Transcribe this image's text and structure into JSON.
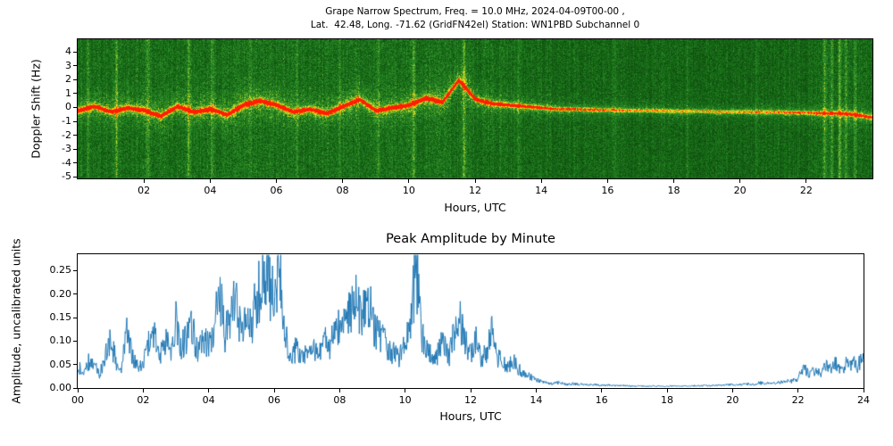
{
  "page": {
    "background": "#ffffff"
  },
  "chart_data": [
    {
      "type": "heatmap",
      "title_line1": "Grape Narrow Spectrum, Freq. = 10.0 MHz, 2024-04-09T00-00 ,",
      "title_line2": "Lat.  42.48, Long. -71.62 (GridFN42el) Station: WN1PBD Subchannel 0",
      "xlabel": "Hours, UTC",
      "ylabel": "Doppler Shift (Hz)",
      "xlim": [
        0,
        24
      ],
      "ylim_hz": [
        -5.1,
        4.9
      ],
      "xtick_values": [
        2,
        4,
        6,
        8,
        10,
        12,
        14,
        16,
        18,
        20,
        22
      ],
      "xtick_labels": [
        "02",
        "04",
        "06",
        "08",
        "10",
        "12",
        "14",
        "16",
        "18",
        "20",
        "22"
      ],
      "ytick_values": [
        4,
        3,
        2,
        1,
        0,
        -1,
        -2,
        -3,
        -4,
        -5
      ],
      "ytick_labels": [
        "4",
        "3",
        "2",
        "1",
        "0",
        "-1",
        "-2",
        "-3",
        "-4",
        "-5"
      ],
      "colormap_stops": [
        [
          0.0,
          [
            6,
            45,
            6
          ]
        ],
        [
          0.35,
          [
            24,
            110,
            24
          ]
        ],
        [
          0.55,
          [
            52,
            150,
            45
          ]
        ],
        [
          0.7,
          [
            150,
            200,
            40
          ]
        ],
        [
          0.8,
          [
            255,
            230,
            30
          ]
        ],
        [
          0.9,
          [
            255,
            150,
            0
          ]
        ],
        [
          1.0,
          [
            255,
            30,
            0
          ]
        ]
      ],
      "doppler_trace": {
        "hours": [
          0,
          0.5,
          1,
          1.5,
          2,
          2.5,
          3,
          3.5,
          4,
          4.5,
          5,
          5.5,
          6,
          6.5,
          7,
          7.5,
          8,
          8.5,
          9,
          9.5,
          10,
          10.5,
          11,
          11.5,
          12,
          12.5,
          13,
          13.5,
          14,
          14.5,
          15,
          15.5,
          16,
          16.5,
          17,
          17.5,
          18,
          18.5,
          19,
          19.5,
          20,
          20.5,
          21,
          21.5,
          22,
          22.5,
          23,
          23.5,
          24
        ],
        "shift_hz": [
          -0.2,
          0.1,
          -0.3,
          0,
          -0.2,
          -0.6,
          0.1,
          -0.3,
          -0.1,
          -0.5,
          0.2,
          0.5,
          0.2,
          -0.3,
          -0.1,
          -0.4,
          0.1,
          0.6,
          -0.2,
          0,
          0.2,
          0.7,
          0.4,
          2,
          0.6,
          0.3,
          0.2,
          0.1,
          0,
          -0.1,
          -0.1,
          -0.15,
          -0.15,
          -0.2,
          -0.2,
          -0.2,
          -0.25,
          -0.25,
          -0.25,
          -0.3,
          -0.3,
          -0.3,
          -0.3,
          -0.35,
          -0.35,
          -0.4,
          -0.4,
          -0.5,
          -0.7
        ],
        "strength": [
          0.9,
          0.9,
          0.95,
          0.9,
          0.95,
          1,
          0.9,
          0.95,
          1,
          0.95,
          1,
          1,
          1,
          0.95,
          0.9,
          0.95,
          0.95,
          1,
          0.9,
          0.9,
          0.95,
          1,
          0.95,
          1,
          0.9,
          0.8,
          0.7,
          0.65,
          0.6,
          0.55,
          0.5,
          0.5,
          0.45,
          0.45,
          0.4,
          0.4,
          0.4,
          0.4,
          0.4,
          0.4,
          0.4,
          0.45,
          0.45,
          0.5,
          0.5,
          0.55,
          0.6,
          0.65,
          0.6
        ]
      },
      "noise_streak_hours": [
        [
          0.3,
          0.22
        ],
        [
          1.15,
          0.28
        ],
        [
          2.1,
          0.18
        ],
        [
          3.35,
          0.25
        ],
        [
          4.05,
          0.2
        ],
        [
          5.2,
          0.18
        ],
        [
          6.6,
          0.22
        ],
        [
          7.9,
          0.18
        ],
        [
          9.05,
          0.2
        ],
        [
          10.15,
          0.25
        ],
        [
          11.65,
          0.3
        ],
        [
          13.3,
          0.15
        ],
        [
          16.2,
          0.1
        ],
        [
          18.4,
          0.12
        ],
        [
          20.5,
          0.1
        ],
        [
          22.55,
          0.3
        ],
        [
          22.75,
          0.25
        ],
        [
          23.0,
          0.35
        ],
        [
          23.2,
          0.3
        ],
        [
          23.45,
          0.25
        ]
      ],
      "description": "Green spectrogram; yellow-red carrier Doppler trace near 0 Hz, strong 00-13 UTC with ~+2 Hz excursion near 11.7 UTC, faint and slightly negative 13-24 UTC, vertical noise streaks near 23 UTC."
    },
    {
      "type": "line",
      "title": "Peak Amplitude by Minute",
      "xlabel": "Hours, UTC",
      "ylabel": "Amplitude, uncalibrated units",
      "xlim": [
        0,
        24
      ],
      "ylim": [
        0,
        0.285
      ],
      "xtick_values": [
        0,
        2,
        4,
        6,
        8,
        10,
        12,
        14,
        16,
        18,
        20,
        22,
        24
      ],
      "xtick_labels": [
        "00",
        "02",
        "04",
        "06",
        "08",
        "10",
        "12",
        "14",
        "16",
        "18",
        "20",
        "22",
        "24"
      ],
      "ytick_values": [
        0,
        0.05,
        0.1,
        0.15,
        0.2,
        0.25
      ],
      "ytick_labels": [
        "0.00",
        "0.05",
        "0.10",
        "0.15",
        "0.20",
        "0.25"
      ],
      "line_color": "#1f77b4",
      "x_start_hours": 0,
      "x_step_hours": 0.1666667,
      "y_envelope": [
        0.05,
        0.04,
        0.06,
        0.05,
        0.03,
        0.07,
        0.12,
        0.06,
        0.05,
        0.13,
        0.07,
        0.05,
        0.06,
        0.1,
        0.13,
        0.07,
        0.11,
        0.08,
        0.16,
        0.09,
        0.12,
        0.14,
        0.08,
        0.12,
        0.1,
        0.13,
        0.23,
        0.12,
        0.17,
        0.2,
        0.13,
        0.17,
        0.14,
        0.21,
        0.28,
        0.24,
        0.22,
        0.26,
        0.12,
        0.07,
        0.09,
        0.07,
        0.08,
        0.1,
        0.08,
        0.11,
        0.09,
        0.13,
        0.15,
        0.14,
        0.18,
        0.22,
        0.16,
        0.2,
        0.15,
        0.13,
        0.11,
        0.09,
        0.08,
        0.07,
        0.1,
        0.14,
        0.29,
        0.13,
        0.09,
        0.07,
        0.08,
        0.11,
        0.07,
        0.13,
        0.16,
        0.1,
        0.08,
        0.12,
        0.06,
        0.09,
        0.13,
        0.07,
        0.06,
        0.05,
        0.06,
        0.04,
        0.03,
        0.025,
        0.02,
        0.015,
        0.012,
        0.01,
        0.012,
        0.01,
        0.008,
        0.01,
        0.008,
        0.009,
        0.007,
        0.008,
        0.006,
        0.007,
        0.006,
        0.005,
        0.006,
        0.005,
        0.004,
        0.005,
        0.004,
        0.004,
        0.005,
        0.004,
        0.004,
        0.005,
        0.004,
        0.005,
        0.004,
        0.005,
        0.005,
        0.006,
        0.005,
        0.007,
        0.006,
        0.008,
        0.007,
        0.009,
        0.008,
        0.01,
        0.009,
        0.012,
        0.01,
        0.013,
        0.012,
        0.015,
        0.014,
        0.018,
        0.02,
        0.05,
        0.03,
        0.04,
        0.035,
        0.05,
        0.045,
        0.06,
        0.04,
        0.055,
        0.065,
        0.05,
        0.08
      ]
    }
  ]
}
